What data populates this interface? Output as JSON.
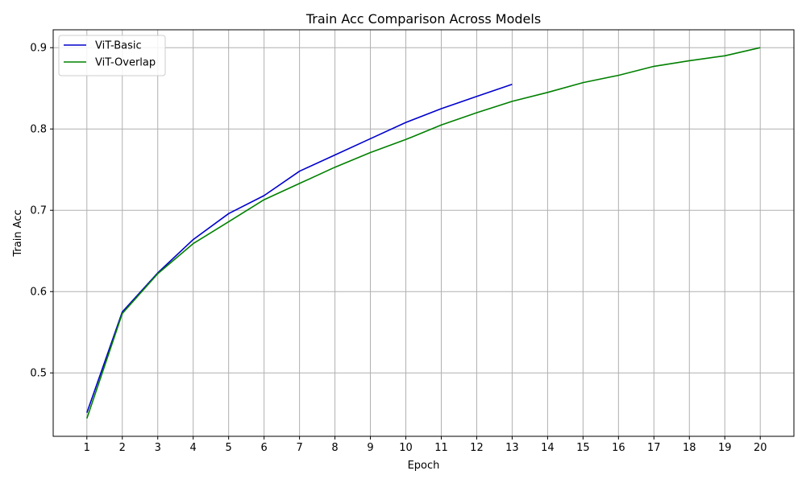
{
  "chart_data": {
    "type": "line",
    "title": "Train Acc Comparison Across Models",
    "xlabel": "Epoch",
    "ylabel": "Train Acc",
    "x": [
      1,
      2,
      3,
      4,
      5,
      6,
      7,
      8,
      9,
      10,
      11,
      12,
      13,
      14,
      15,
      16,
      17,
      18,
      19,
      20
    ],
    "xlim": [
      0.05,
      20.95
    ],
    "ylim": [
      0.422,
      0.922
    ],
    "yticks": [
      0.5,
      0.6,
      0.7,
      0.8,
      0.9
    ],
    "grid": true,
    "legend_position": "top-left",
    "series": [
      {
        "name": "ViT-Basic",
        "color": "#0000cc",
        "x": [
          1,
          2,
          3,
          4,
          5,
          6,
          7,
          8,
          9,
          10,
          11,
          12,
          13
        ],
        "values": [
          0.451,
          0.575,
          0.623,
          0.664,
          0.696,
          0.718,
          0.748,
          0.768,
          0.788,
          0.808,
          0.825,
          0.84,
          0.855
        ]
      },
      {
        "name": "ViT-Overlap",
        "color": "#008000",
        "x": [
          1,
          2,
          3,
          4,
          5,
          6,
          7,
          8,
          9,
          10,
          11,
          12,
          13,
          14,
          15,
          16,
          17,
          18,
          19,
          20
        ],
        "values": [
          0.444,
          0.573,
          0.622,
          0.659,
          0.686,
          0.713,
          0.733,
          0.753,
          0.771,
          0.787,
          0.805,
          0.82,
          0.834,
          0.845,
          0.857,
          0.866,
          0.877,
          0.884,
          0.89,
          0.9
        ]
      }
    ]
  }
}
